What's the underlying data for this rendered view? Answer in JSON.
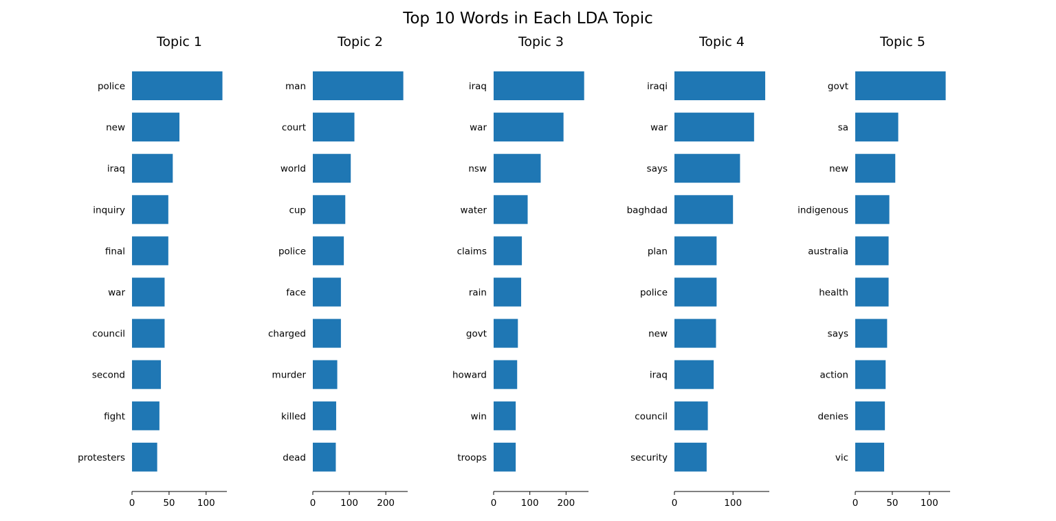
{
  "title": "Top 10 Words in Each LDA Topic",
  "chart_data": [
    {
      "type": "bar",
      "orientation": "horizontal",
      "title": "Topic 1",
      "color": "#1f77b4",
      "categories": [
        "police",
        "new",
        "iraq",
        "inquiry",
        "final",
        "war",
        "council",
        "second",
        "fight",
        "protesters"
      ],
      "values": [
        122,
        64,
        55,
        49,
        49,
        44,
        44,
        39,
        37,
        34
      ],
      "xlim": [
        0,
        128
      ],
      "xticks": [
        0,
        50,
        100
      ]
    },
    {
      "type": "bar",
      "orientation": "horizontal",
      "title": "Topic 2",
      "color": "#1f77b4",
      "categories": [
        "man",
        "court",
        "world",
        "cup",
        "police",
        "face",
        "charged",
        "murder",
        "killed",
        "dead"
      ],
      "values": [
        248,
        114,
        104,
        89,
        85,
        77,
        77,
        67,
        64,
        63
      ],
      "xlim": [
        0,
        260
      ],
      "xticks": [
        0,
        100,
        200
      ]
    },
    {
      "type": "bar",
      "orientation": "horizontal",
      "title": "Topic 3",
      "color": "#1f77b4",
      "categories": [
        "iraq",
        "war",
        "nsw",
        "water",
        "claims",
        "rain",
        "govt",
        "howard",
        "win",
        "troops"
      ],
      "values": [
        250,
        193,
        130,
        94,
        78,
        76,
        67,
        65,
        61,
        61
      ],
      "xlim": [
        0,
        262
      ],
      "xticks": [
        0,
        100,
        200
      ]
    },
    {
      "type": "bar",
      "orientation": "horizontal",
      "title": "Topic 4",
      "color": "#1f77b4",
      "categories": [
        "iraqi",
        "war",
        "says",
        "baghdad",
        "plan",
        "police",
        "new",
        "iraq",
        "council",
        "security"
      ],
      "values": [
        155,
        136,
        112,
        100,
        72,
        72,
        71,
        67,
        57,
        55
      ],
      "xlim": [
        0,
        162
      ],
      "xticks": [
        0,
        100
      ]
    },
    {
      "type": "bar",
      "orientation": "horizontal",
      "title": "Topic 5",
      "color": "#1f77b4",
      "categories": [
        "govt",
        "sa",
        "new",
        "indigenous",
        "australia",
        "health",
        "says",
        "action",
        "denies",
        "vic"
      ],
      "values": [
        122,
        58,
        54,
        46,
        45,
        45,
        43,
        41,
        40,
        39
      ],
      "xlim": [
        0,
        128
      ],
      "xticks": [
        0,
        50,
        100
      ]
    }
  ]
}
